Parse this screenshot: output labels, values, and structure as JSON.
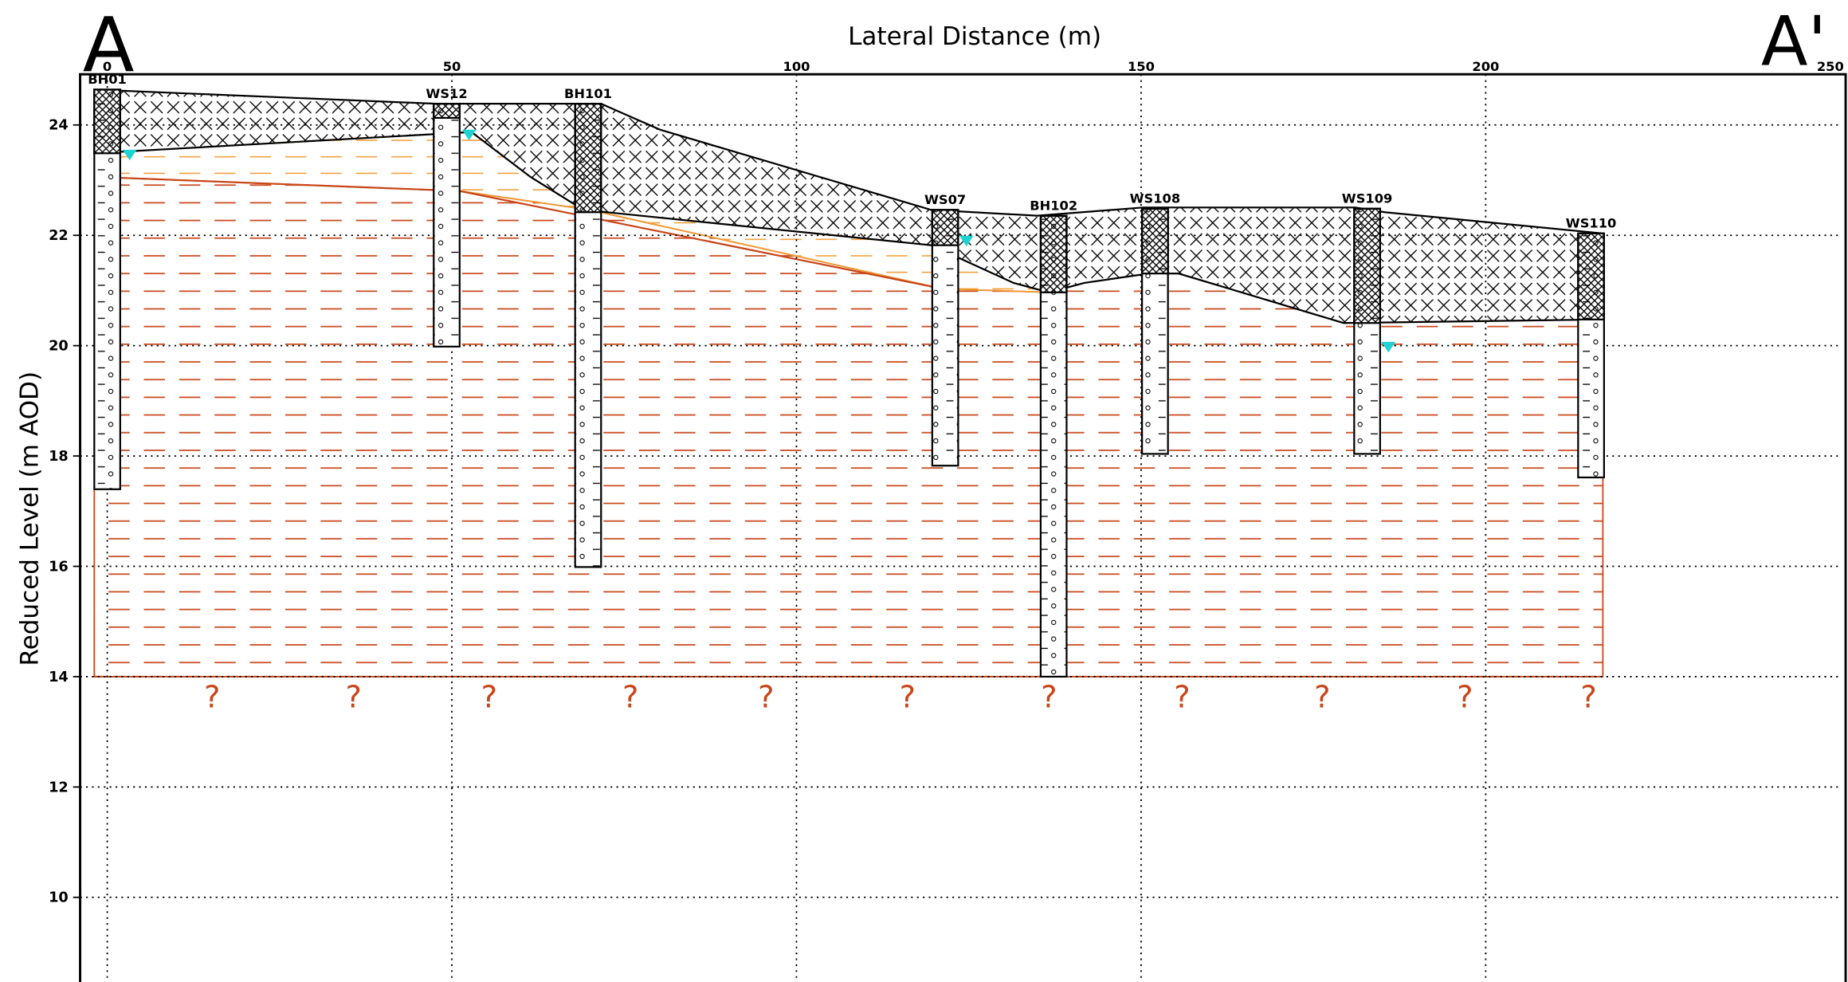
{
  "section": {
    "start": "A",
    "end": "A'"
  },
  "axes": {
    "x_title": "Lateral Distance (m)",
    "y_title": "Reduced Level (m AOD)",
    "x_ticks": [
      "0",
      "50",
      "100",
      "150",
      "200",
      "250"
    ],
    "y_ticks": [
      "24",
      "22",
      "20",
      "18",
      "16",
      "14",
      "12",
      "10"
    ]
  },
  "boreholes": [
    {
      "label": "BH01"
    },
    {
      "label": "WS12"
    },
    {
      "label": "BH101"
    },
    {
      "label": "WS07"
    },
    {
      "label": "BH102"
    },
    {
      "label": "WS108"
    },
    {
      "label": "WS109"
    },
    {
      "label": "WS110"
    }
  ],
  "unknown_marker": "?"
}
